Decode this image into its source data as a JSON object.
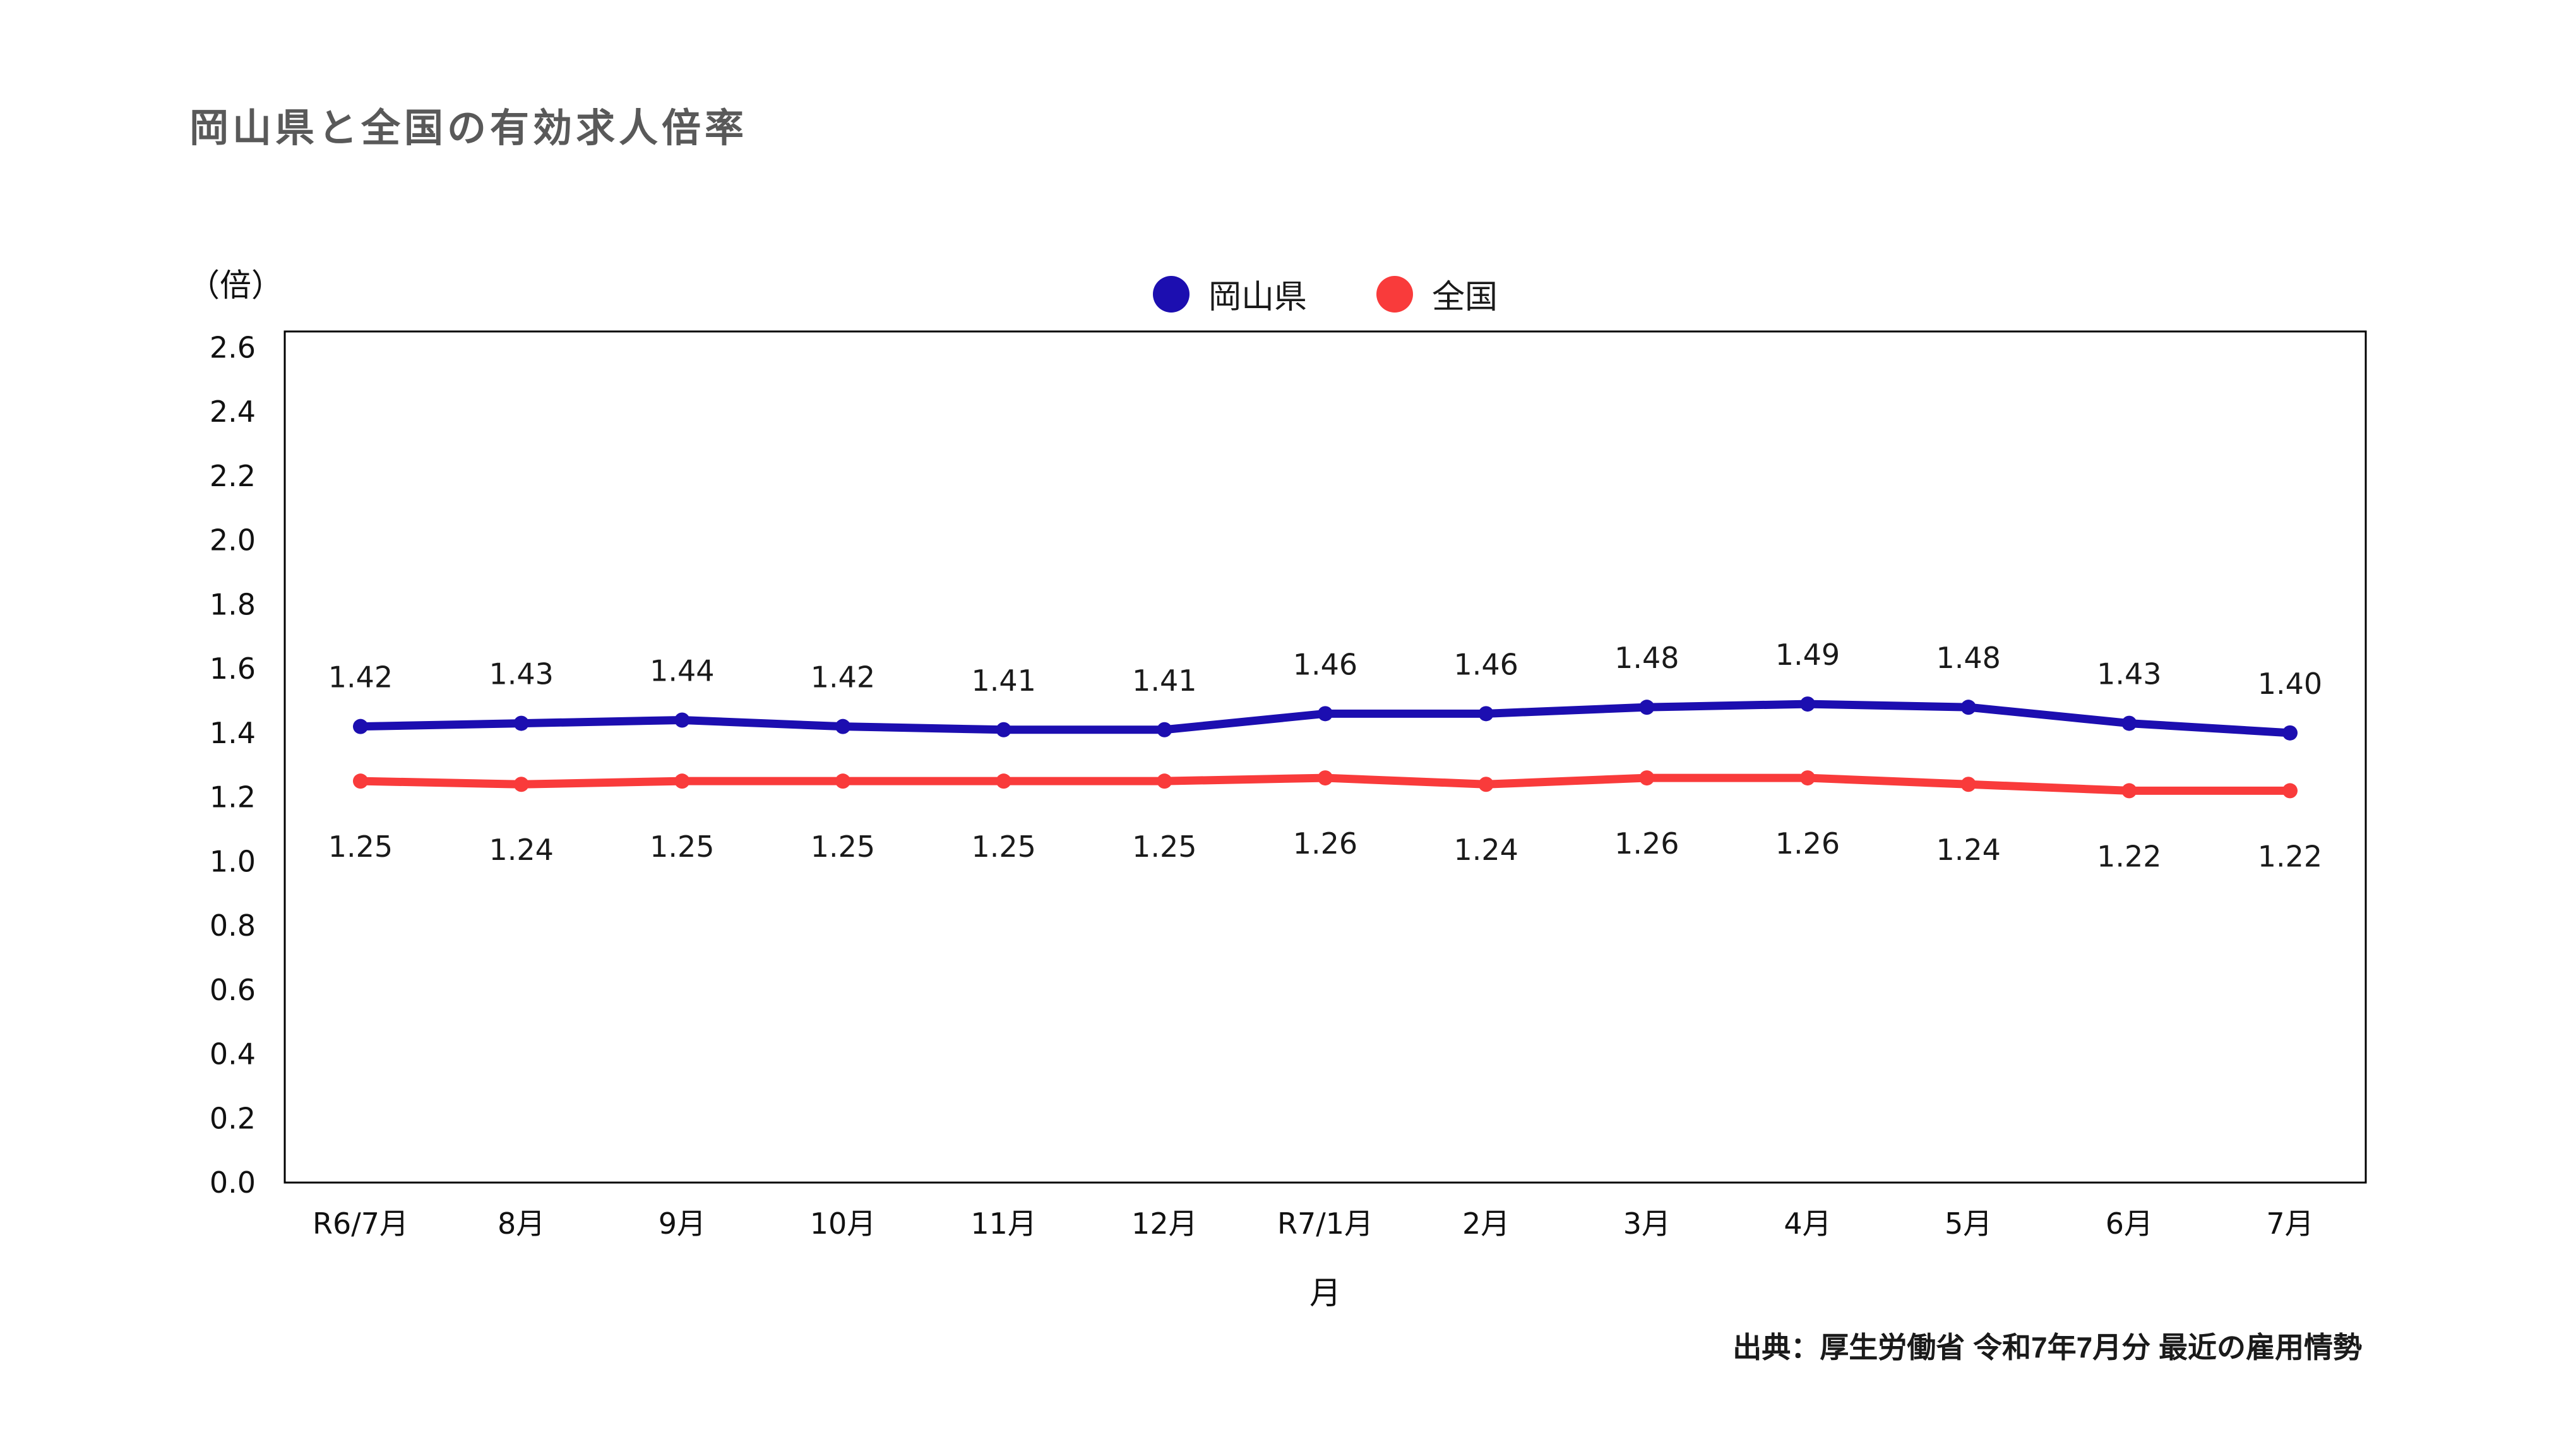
{
  "page": {
    "title": "岡山県と全国の有効求人倍率",
    "unit_label": "（倍）",
    "source": "出典：厚生労働省 令和7年7月分 最近の雇用情勢"
  },
  "legend": {
    "items": [
      {
        "label": "岡山県",
        "color": "#1C0EB0"
      },
      {
        "label": "全国",
        "color": "#F93B3B"
      }
    ]
  },
  "chart_data": {
    "type": "line",
    "categories": [
      "R6/7月",
      "8月",
      "9月",
      "10月",
      "11月",
      "12月",
      "R7/1月",
      "2月",
      "3月",
      "4月",
      "5月",
      "6月",
      "7月"
    ],
    "series": [
      {
        "name": "岡山県",
        "color": "#1C0EB0",
        "values": [
          1.42,
          1.43,
          1.44,
          1.42,
          1.41,
          1.41,
          1.46,
          1.46,
          1.48,
          1.49,
          1.48,
          1.43,
          1.4
        ],
        "label_position": "above"
      },
      {
        "name": "全国",
        "color": "#F93B3B",
        "values": [
          1.25,
          1.24,
          1.25,
          1.25,
          1.25,
          1.25,
          1.26,
          1.24,
          1.26,
          1.26,
          1.24,
          1.22,
          1.22
        ],
        "label_position": "below"
      }
    ],
    "title": "岡山県と全国の有効求人倍率",
    "xlabel": "月",
    "ylabel": "（倍）",
    "ylim": [
      0,
      2.65
    ],
    "yticks": {
      "min": 0.0,
      "max": 2.6,
      "step": 0.2,
      "decimals": 1
    },
    "value_label_decimals": 2,
    "grid": false,
    "legend_position": "top-center"
  }
}
